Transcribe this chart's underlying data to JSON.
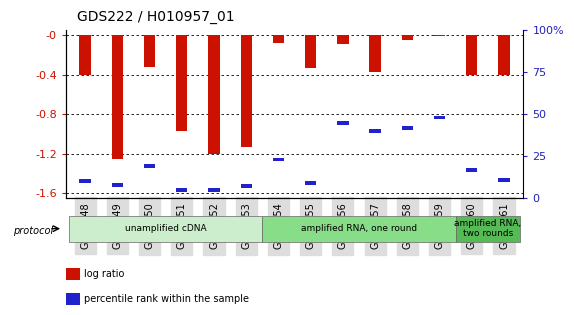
{
  "title": "GDS222 / H010957_01",
  "samples": [
    "GSM4848",
    "GSM4849",
    "GSM4850",
    "GSM4851",
    "GSM4852",
    "GSM4853",
    "GSM4854",
    "GSM4855",
    "GSM4856",
    "GSM4857",
    "GSM4858",
    "GSM4859",
    "GSM4860",
    "GSM4861"
  ],
  "log_ratio": [
    -0.4,
    -1.25,
    -0.32,
    -0.97,
    -1.2,
    -1.13,
    -0.08,
    -0.33,
    -0.09,
    -0.37,
    -0.05,
    -0.01,
    -0.4,
    -0.4
  ],
  "percentile": [
    10,
    8,
    19,
    5,
    5,
    7,
    23,
    9,
    45,
    40,
    42,
    48,
    17,
    11
  ],
  "ylim_left": [
    -1.65,
    0.05
  ],
  "ylim_right": [
    0,
    100
  ],
  "yticks_left": [
    0,
    -0.4,
    -0.8,
    -1.2,
    -1.6
  ],
  "yticks_right": [
    0,
    25,
    50,
    75,
    100
  ],
  "ytick_labels_right": [
    "0",
    "25",
    "50",
    "75",
    "100%"
  ],
  "bar_color": "#cc1100",
  "blue_color": "#2222cc",
  "bar_width": 0.35,
  "protocol_groups": [
    {
      "label": "unamplified cDNA",
      "start": 0,
      "end": 5,
      "color": "#cceecc"
    },
    {
      "label": "amplified RNA, one round",
      "start": 6,
      "end": 11,
      "color": "#88dd88"
    },
    {
      "label": "amplified RNA,\ntwo rounds",
      "start": 12,
      "end": 13,
      "color": "#55bb55"
    }
  ],
  "protocol_label": "protocol",
  "legend_items": [
    {
      "color": "#cc1100",
      "label": "log ratio"
    },
    {
      "color": "#2222cc",
      "label": "percentile rank within the sample"
    }
  ],
  "bg_color": "#ffffff",
  "tick_label_color_left": "#cc1100",
  "tick_label_color_right": "#2222bb",
  "xtick_bg": "#dddddd"
}
